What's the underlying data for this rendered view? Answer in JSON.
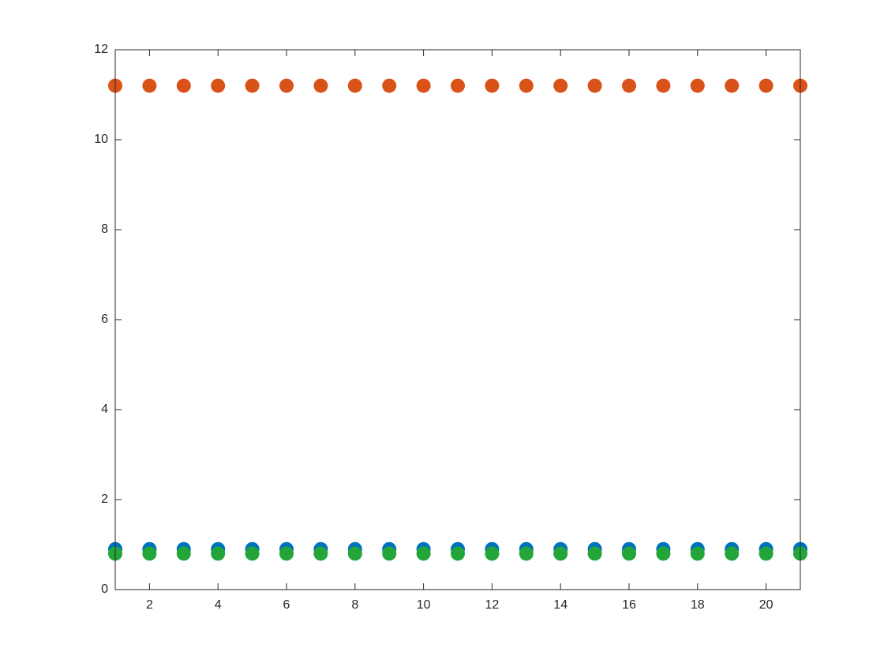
{
  "chart_data": {
    "type": "scatter",
    "x": [
      1,
      2,
      3,
      4,
      5,
      6,
      7,
      8,
      9,
      10,
      11,
      12,
      13,
      14,
      15,
      16,
      17,
      18,
      19,
      20,
      21
    ],
    "series": [
      {
        "color": "#0072bd",
        "values": [
          0.9,
          0.9,
          0.9,
          0.9,
          0.9,
          0.9,
          0.9,
          0.9,
          0.9,
          0.9,
          0.9,
          0.9,
          0.9,
          0.9,
          0.9,
          0.9,
          0.9,
          0.9,
          0.9,
          0.9,
          0.9
        ]
      },
      {
        "color": "#d95319",
        "values": [
          11.2,
          11.2,
          11.2,
          11.2,
          11.2,
          11.2,
          11.2,
          11.2,
          11.2,
          11.2,
          11.2,
          11.2,
          11.2,
          11.2,
          11.2,
          11.2,
          11.2,
          11.2,
          11.2,
          11.2,
          11.2
        ]
      },
      {
        "color": "#23a53a",
        "values": [
          0.8,
          0.8,
          0.8,
          0.8,
          0.8,
          0.8,
          0.8,
          0.8,
          0.8,
          0.8,
          0.8,
          0.8,
          0.8,
          0.8,
          0.8,
          0.8,
          0.8,
          0.8,
          0.8,
          0.8,
          0.8
        ]
      }
    ],
    "xlim": [
      1,
      21
    ],
    "xticks": [
      2,
      4,
      6,
      8,
      10,
      12,
      14,
      16,
      18,
      20
    ],
    "ylim": [
      0,
      12
    ],
    "yticks": [
      0,
      2,
      4,
      6,
      8,
      10,
      12
    ],
    "box": true
  }
}
